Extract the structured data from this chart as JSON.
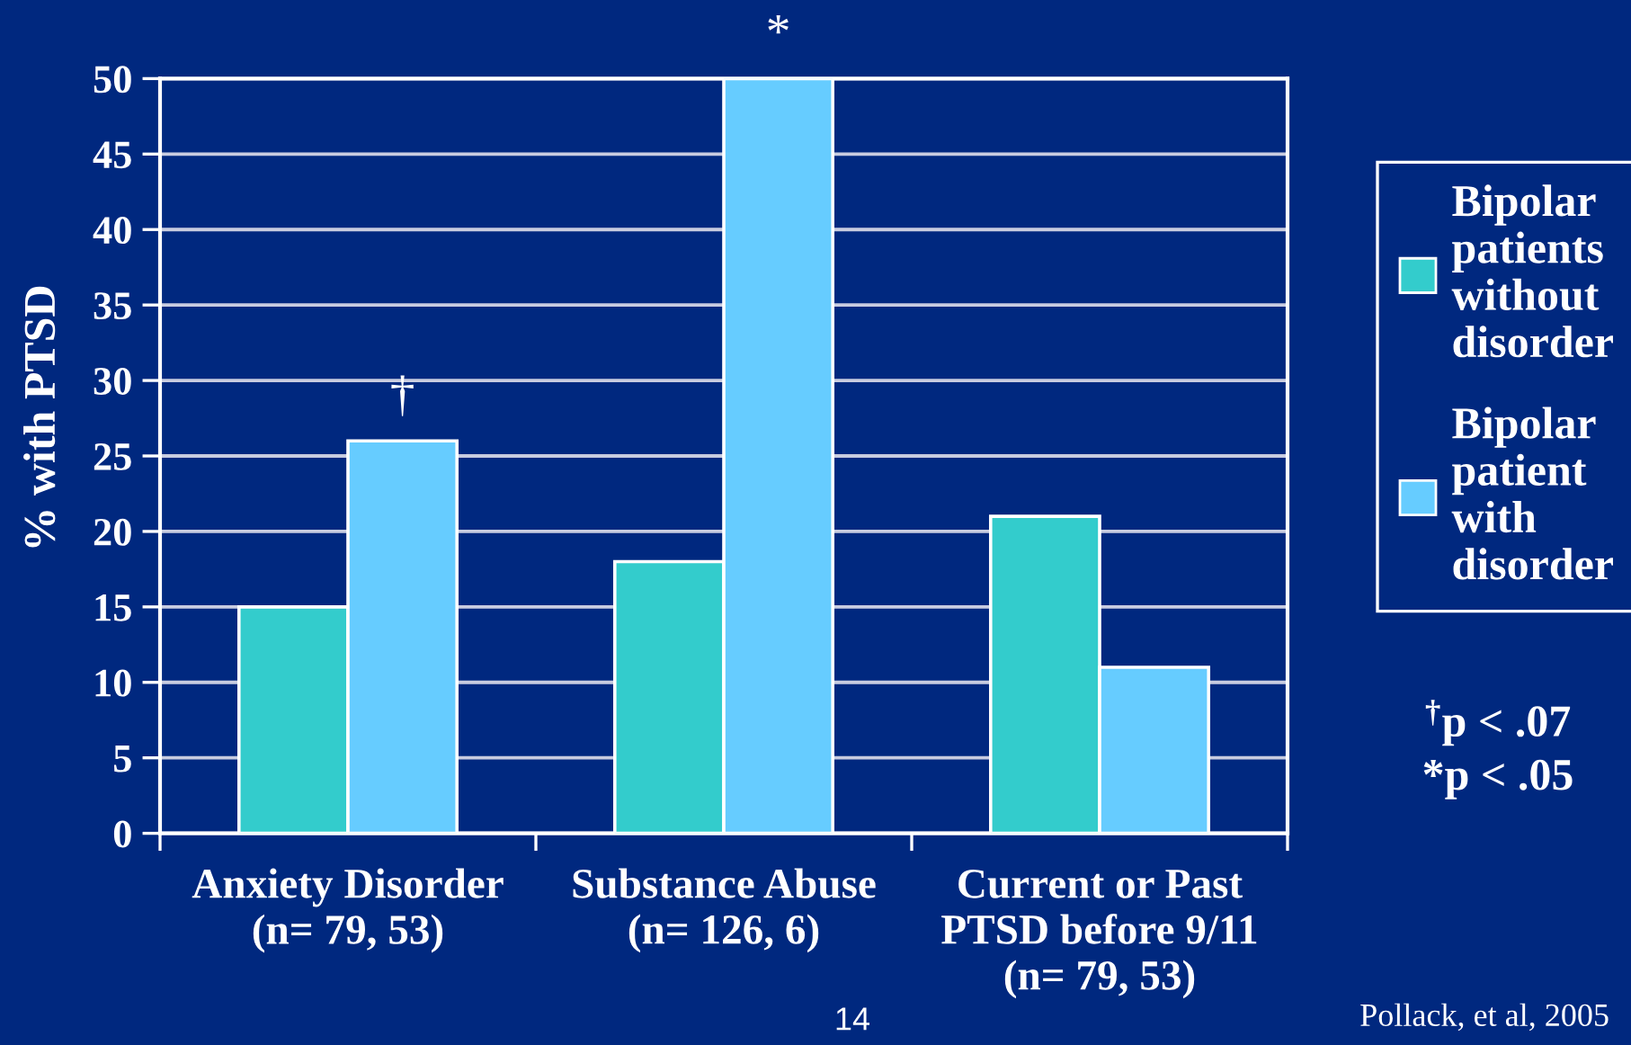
{
  "chart_data": {
    "type": "bar",
    "ylabel": "% with PTSD",
    "categories": [
      "Anxiety Disorder\n(n= 79, 53)",
      "Substance Abuse\n(n= 126, 6)",
      "Current or Past\nPTSD before 9/11\n(n= 79, 53)"
    ],
    "series": [
      {
        "name": "Bipolar\npatients\nwithout\ndisorder",
        "color": "#33cccc",
        "values": [
          15,
          18,
          21
        ]
      },
      {
        "name": "Bipolar\npatient\nwith\ndisorder",
        "color": "#66ccff",
        "values": [
          26,
          50,
          11
        ]
      }
    ],
    "ylim": [
      0,
      50
    ],
    "yticks": [
      0,
      5,
      10,
      15,
      20,
      25,
      30,
      35,
      40,
      45,
      50
    ],
    "grid": "y",
    "legend": "right",
    "annotations": [
      {
        "text": "†",
        "x": "Anxiety Disorder\n(n= 79, 53)",
        "y": 26
      },
      {
        "text": "*",
        "x": "Substance Abuse\n(n= 126, 6)",
        "y": 50
      },
      "$^{†}$p < .07",
      "*p < .05",
      "14",
      "Pollack, et al, 2005"
    ]
  }
}
